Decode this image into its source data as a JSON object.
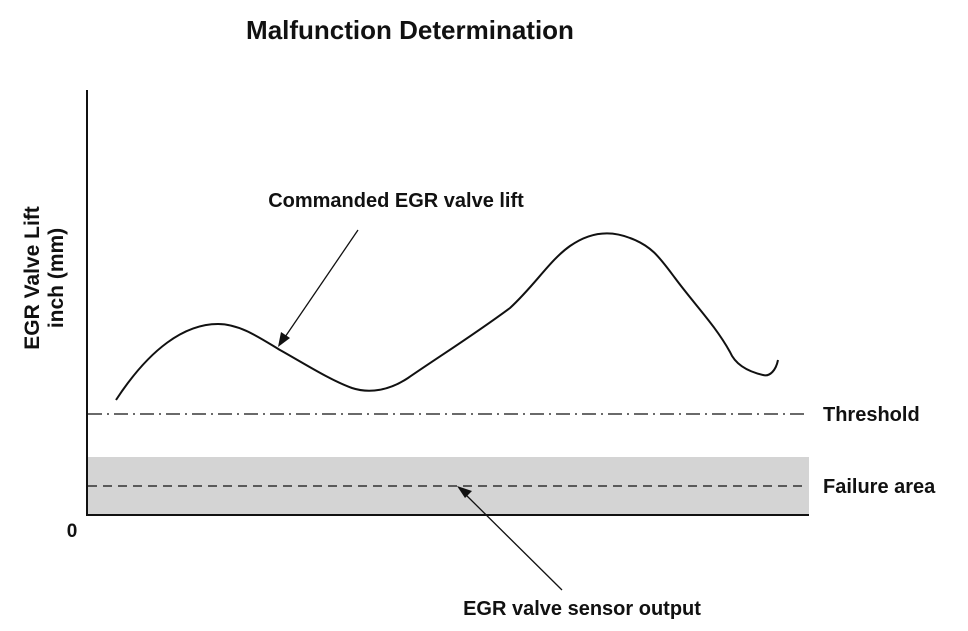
{
  "title": "Malfunction Determination",
  "y_axis": {
    "label_line1": "EGR Valve Lift",
    "label_line2": "inch (mm)",
    "origin_label": "0"
  },
  "annotations": {
    "commanded": "Commanded EGR valve lift",
    "threshold": "Threshold",
    "failure_area": "Failure area",
    "sensor_output": "EGR valve sensor output"
  },
  "colors": {
    "ink": "#111111",
    "failure_band": "#d4d4d4"
  }
}
